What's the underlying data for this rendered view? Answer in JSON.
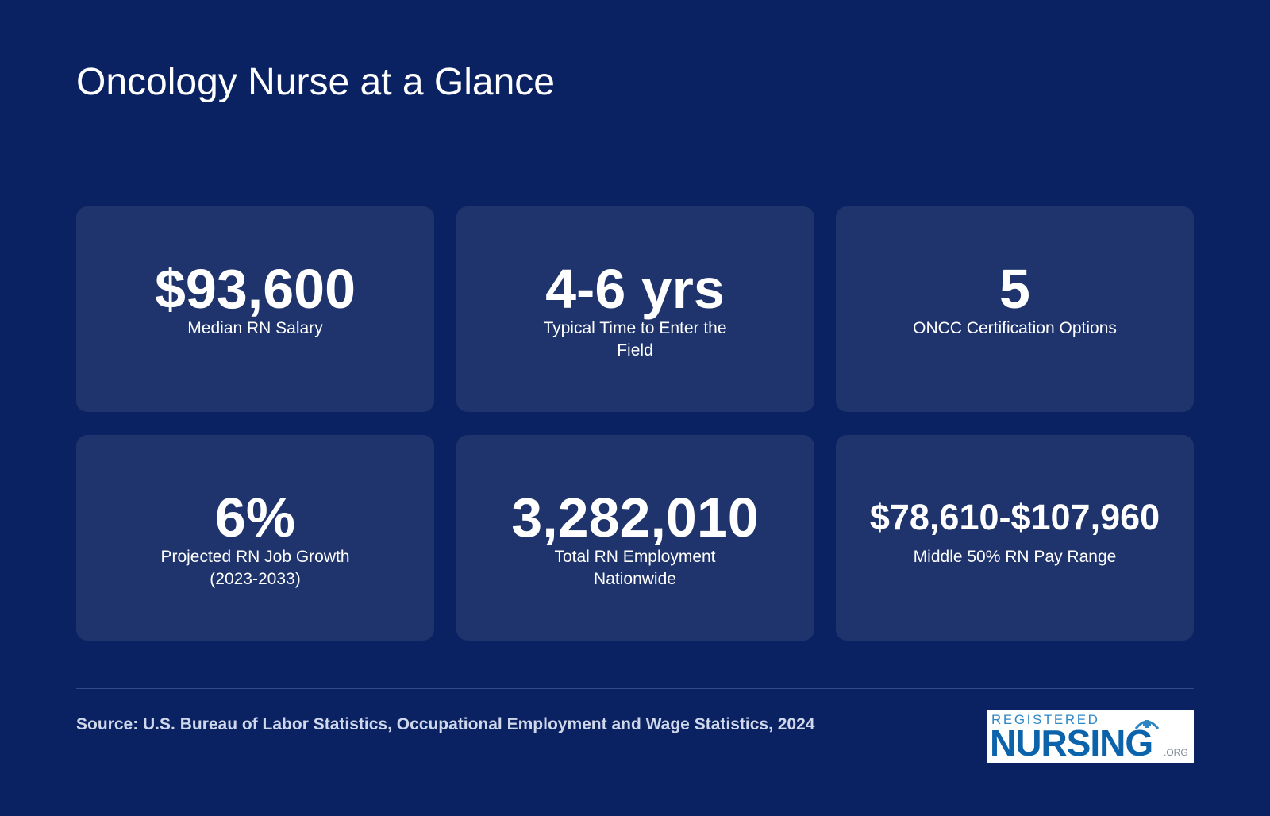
{
  "page": {
    "title": "Oncology Nurse at a Glance"
  },
  "stats": [
    {
      "value": "$93,600",
      "label": "Median RN Salary"
    },
    {
      "value": "4-6 yrs",
      "label": "Typical Time to Enter the Field"
    },
    {
      "value": "5",
      "label": "ONCC Certification Options"
    },
    {
      "value": "6%",
      "label": "Projected RN Job Growth (2023-2033)"
    },
    {
      "value": "3,282,010",
      "label": "Total RN Employment Nationwide"
    },
    {
      "value": "$78,610-$107,960",
      "label": "Middle 50% RN Pay Range"
    }
  ],
  "footer": {
    "source": "Source: U.S. Bureau of Labor Statistics, Occupational Employment and Wage Statistics, 2024",
    "logo": {
      "top": "REGISTERED",
      "main": "NURSING",
      "suffix": ".ORG"
    }
  },
  "colors": {
    "background": "#0b2262",
    "card": "#1f346c",
    "divider": "#2f4a88",
    "logo_blue": "#0b63ab"
  }
}
